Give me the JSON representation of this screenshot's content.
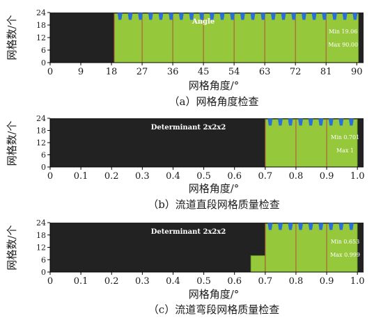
{
  "colors": {
    "background": "#222222",
    "bar": "#96c83c",
    "bar_edge": "#5a8a1e",
    "divider": "#b0503a",
    "marker": "#2a6fd6",
    "inner_text": "#ffffff",
    "axis_text": "#1a1a1a"
  },
  "chart_data": [
    {
      "type": "bar",
      "caption": "（a）网格角度检查",
      "title": "Angle",
      "xlabel": "网格角度/°",
      "ylabel": "网格数/个",
      "xlim": [
        0,
        92
      ],
      "ylim": [
        0,
        24
      ],
      "xticks": [
        "0",
        "9",
        "18",
        "27",
        "36",
        "45",
        "54",
        "63",
        "72",
        "81",
        "90"
      ],
      "yticks": [
        "0",
        "6",
        "12",
        "18",
        "24"
      ],
      "stats": [
        "Min 19.06",
        "Max 90.00"
      ],
      "dividers": [
        18.8,
        27,
        36,
        45,
        54,
        63,
        72,
        81
      ],
      "bars": [
        {
          "x0": 18.8,
          "x1": 90.5,
          "value": 23.5
        }
      ],
      "markers": [
        20.5,
        23.5,
        26.5,
        29.5,
        32.5,
        35.5,
        38.5,
        41.5,
        44.5,
        47.5,
        50.5,
        53.5,
        56.5,
        59.5,
        62.5,
        65.5,
        68.5,
        71.5,
        74.5,
        77.5,
        80.5,
        83.5,
        86.5,
        89.5
      ]
    },
    {
      "type": "bar",
      "caption": "（b）流道直段网格质量检查",
      "title": "Determinant 2x2x2",
      "xlabel": "网格角度/°",
      "ylabel": "网格数/个",
      "xlim": [
        0,
        1.02
      ],
      "ylim": [
        0,
        24
      ],
      "xticks": [
        "0",
        "0.1",
        "0.2",
        "0.3",
        "0.4",
        "0.5",
        "0.6",
        "0.7",
        "0.8",
        "0.9",
        "1.0"
      ],
      "yticks": [
        "0",
        "6",
        "12",
        "18",
        "24"
      ],
      "stats": [
        "Min 0.701",
        "Max 1"
      ],
      "dividers": [
        0.7,
        0.8,
        0.9
      ],
      "bars": [
        {
          "x0": 0.7,
          "x1": 1.0,
          "value": 23.5
        }
      ],
      "markers": [
        0.716,
        0.749,
        0.782,
        0.815,
        0.848,
        0.881,
        0.914,
        0.947,
        0.98
      ]
    },
    {
      "type": "bar",
      "caption": "（c）流道弯段网格质量检查",
      "title": "Determinant 2x2x2",
      "xlabel": "网格角度/°",
      "ylabel": "网格数/个",
      "xlim": [
        0,
        1.02
      ],
      "ylim": [
        0,
        24
      ],
      "xticks": [
        "0",
        "0.1",
        "0.2",
        "0.3",
        "0.4",
        "0.5",
        "0.6",
        "0.7",
        "0.8",
        "0.9",
        "1.0"
      ],
      "yticks": [
        "0",
        "6",
        "12",
        "18",
        "24"
      ],
      "stats": [
        "Min 0.653",
        "Max 0.999"
      ],
      "dividers": [
        0.7,
        0.8,
        0.9
      ],
      "bars": [
        {
          "x0": 0.653,
          "x1": 0.7,
          "value": 8
        },
        {
          "x0": 0.7,
          "x1": 1.0,
          "value": 23.5
        }
      ],
      "markers": [
        0.716,
        0.749,
        0.782,
        0.815,
        0.848,
        0.881,
        0.914,
        0.947,
        0.98
      ]
    }
  ]
}
